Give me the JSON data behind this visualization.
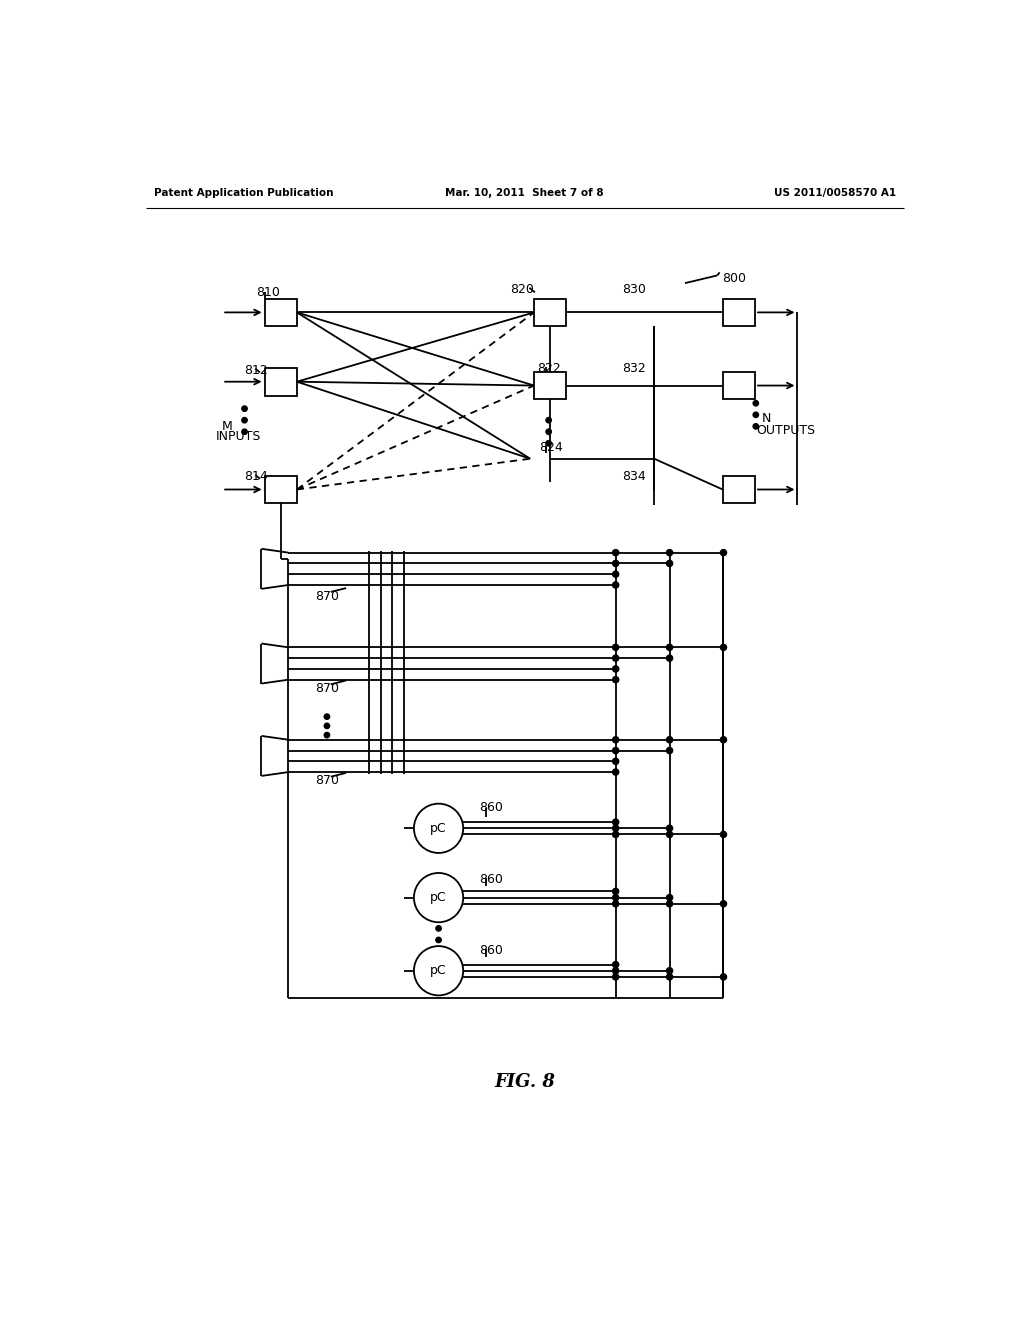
{
  "bg_color": "#ffffff",
  "lc": "#000000",
  "header_left": "Patent Application Publication",
  "header_mid": "Mar. 10, 2011  Sheet 7 of 8",
  "header_right": "US 2011/0058570 A1",
  "fig_label": "FIG. 8"
}
